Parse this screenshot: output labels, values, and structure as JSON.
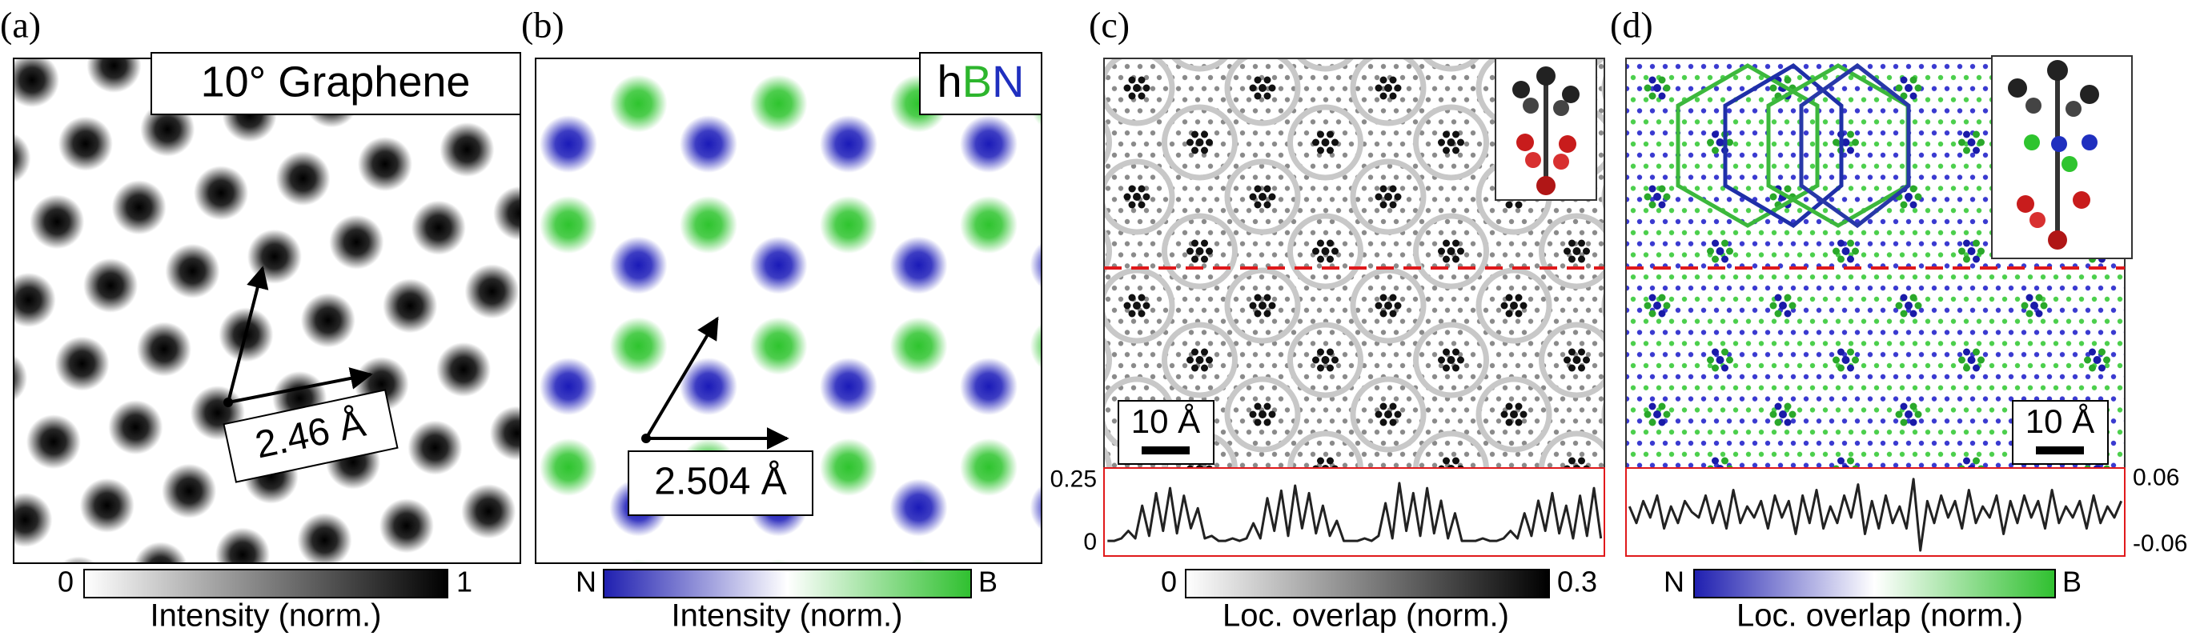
{
  "panels": [
    {
      "label": "(a)",
      "title": "10° Graphene",
      "scale_label": "2.46 Å",
      "colorbar": {
        "ticks": [
          0,
          1
        ],
        "colors": [
          "#ffffff",
          "#000000"
        ],
        "label": "Intensity (norm.)"
      }
    },
    {
      "label": "(b)",
      "title_parts": [
        {
          "text": "h",
          "color": "#000000"
        },
        {
          "text": "B",
          "color": "#2db52d"
        },
        {
          "text": "N",
          "color": "#1f2fbf"
        }
      ],
      "scale_label": "2.504 Å",
      "colorbar": {
        "end_labels": [
          "N",
          "B"
        ],
        "colors": [
          "#1f1fb0",
          "#ffffff",
          "#2fc02f"
        ],
        "label": "Intensity (norm.)"
      }
    },
    {
      "label": "(c)",
      "scale_label": "10 Å",
      "profile": {
        "ylim": [
          -0.05,
          0.3
        ],
        "yticks": [
          0,
          0.25
        ],
        "color": "#222222",
        "values": [
          0.01,
          0.01,
          0.02,
          0.05,
          0.02,
          0.15,
          0.03,
          0.2,
          0.05,
          0.22,
          0.04,
          0.19,
          0.06,
          0.14,
          0.02,
          0.03,
          0.01,
          0.01,
          0.02,
          0.01,
          0.02,
          0.08,
          0.02,
          0.18,
          0.05,
          0.21,
          0.03,
          0.23,
          0.06,
          0.2,
          0.04,
          0.15,
          0.03,
          0.09,
          0.01,
          0.01,
          0.01,
          0.02,
          0.01,
          0.03,
          0.16,
          0.02,
          0.24,
          0.05,
          0.2,
          0.03,
          0.22,
          0.04,
          0.17,
          0.02,
          0.12,
          0.01,
          0.01,
          0.01,
          0.02,
          0.01,
          0.01,
          0.02,
          0.05,
          0.02,
          0.12,
          0.03,
          0.17,
          0.05,
          0.2,
          0.04,
          0.15,
          0.02,
          0.19,
          0.03,
          0.22,
          0.02
        ]
      },
      "colorbar": {
        "ticks": [
          0,
          0.3
        ],
        "colors": [
          "#ffffff",
          "#000000"
        ],
        "label": "Loc. overlap (norm.)"
      }
    },
    {
      "label": "(d)",
      "scale_label": "10 Å",
      "profile": {
        "ylim": [
          -0.08,
          0.08
        ],
        "yticks": [
          -0.06,
          0.06
        ],
        "color": "#222222",
        "values": [
          0.01,
          -0.02,
          0.02,
          -0.01,
          0.03,
          -0.03,
          0.01,
          -0.02,
          0.02,
          0.0,
          -0.01,
          0.03,
          -0.02,
          0.02,
          -0.03,
          0.04,
          -0.02,
          0.01,
          -0.01,
          0.02,
          -0.03,
          0.03,
          -0.01,
          0.02,
          -0.04,
          0.03,
          -0.02,
          0.04,
          -0.03,
          0.01,
          -0.02,
          0.03,
          -0.01,
          0.05,
          -0.04,
          0.02,
          -0.03,
          0.03,
          -0.02,
          0.01,
          -0.03,
          0.06,
          -0.07,
          0.02,
          -0.02,
          0.03,
          -0.01,
          0.02,
          -0.03,
          0.04,
          -0.02,
          0.01,
          -0.01,
          0.03,
          -0.04,
          0.02,
          -0.02,
          0.03,
          -0.01,
          0.02,
          -0.03,
          0.04,
          -0.02,
          0.01,
          -0.01,
          0.02,
          -0.03,
          0.03,
          -0.02,
          0.01,
          -0.01,
          0.02
        ]
      },
      "colorbar": {
        "end_labels": [
          "N",
          "B"
        ],
        "colors": [
          "#1f1fb0",
          "#ffffff",
          "#2fc02f"
        ],
        "label": "Loc. overlap (norm.)"
      }
    }
  ]
}
